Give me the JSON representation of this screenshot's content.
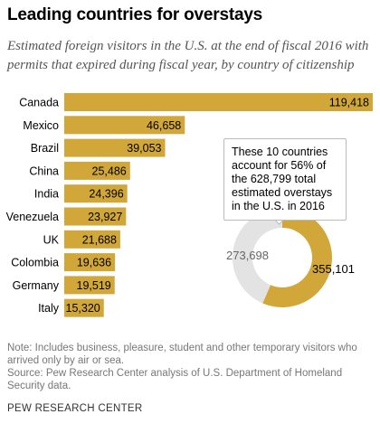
{
  "header": {
    "title": "Leading countries for overstays",
    "subtitle": "Estimated foreign visitors in the U.S. at the end of fiscal 2016 with permits that expired during fiscal year, by country of citizenship"
  },
  "chart_data": [
    {
      "type": "bar",
      "orientation": "horizontal",
      "categories": [
        "Canada",
        "Mexico",
        "Brazil",
        "China",
        "India",
        "Venezuela",
        "UK",
        "Colombia",
        "Germany",
        "Italy"
      ],
      "values": [
        119418,
        46658,
        39053,
        25486,
        24396,
        23927,
        21688,
        19636,
        19519,
        15320
      ],
      "value_labels": [
        "119,418",
        "46,658",
        "39,053",
        "25,486",
        "24,396",
        "23,927",
        "21,688",
        "19,636",
        "19,519",
        "15,320"
      ],
      "bar_color": "#d1a73a"
    },
    {
      "type": "pie",
      "donut": true,
      "slices": [
        {
          "label": "355,101",
          "value": 355101,
          "color": "#d1a73a"
        },
        {
          "label": "273,698",
          "value": 273698,
          "color": "#e3e3e3"
        }
      ]
    }
  ],
  "callout": {
    "text": "These 10 countries account for 56% of the 628,799 total estimated overstays in the U.S. in 2016"
  },
  "footer": {
    "note": "Note: Includes business, pleasure, student and other temporary visitors who arrived only by air or sea.",
    "source": "Source: Pew Research Center analysis of U.S. Department of Homeland Security data.",
    "credit": "PEW RESEARCH CENTER"
  }
}
